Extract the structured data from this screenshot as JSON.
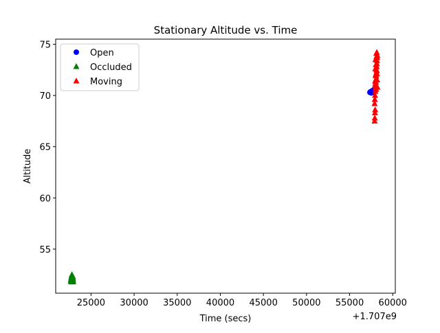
{
  "chart_data": {
    "type": "scatter",
    "title": "Stationary Altitude vs. Time",
    "xlabel": "Time (secs)",
    "ylabel": "Altitude",
    "x_offset_label": "+1.707e9",
    "x_offset": 1707000000,
    "xlim": [
      20900,
      60300
    ],
    "ylim": [
      50.7,
      75.5
    ],
    "x_ticks": [
      25000,
      30000,
      35000,
      40000,
      45000,
      50000,
      55000,
      60000
    ],
    "x_tick_labels": [
      "25000",
      "30000",
      "35000",
      "40000",
      "45000",
      "50000",
      "55000",
      "60000"
    ],
    "y_ticks": [
      55,
      60,
      65,
      70,
      75
    ],
    "y_tick_labels": [
      "55",
      "60",
      "65",
      "70",
      "75"
    ],
    "grid": false,
    "legend_position": "top-left",
    "series": [
      {
        "name": "Open",
        "marker": "circle",
        "color": "#0000ff",
        "points": [
          [
            57350,
            70.3
          ],
          [
            57400,
            70.35
          ],
          [
            57450,
            70.3
          ],
          [
            57500,
            70.4
          ],
          [
            57550,
            70.35
          ],
          [
            57600,
            70.4
          ],
          [
            57650,
            70.45
          ],
          [
            57700,
            70.5
          ],
          [
            57750,
            70.45
          ],
          [
            57800,
            70.55
          ],
          [
            57850,
            70.6
          ],
          [
            57900,
            70.6
          ],
          [
            57950,
            70.65
          ],
          [
            57500,
            70.25
          ],
          [
            57700,
            70.3
          ]
        ]
      },
      {
        "name": "Occluded",
        "marker": "triangle",
        "color": "#008000",
        "points": [
          [
            22650,
            51.9
          ],
          [
            22680,
            52.0
          ],
          [
            22700,
            52.1
          ],
          [
            22720,
            52.2
          ],
          [
            22740,
            52.3
          ],
          [
            22760,
            52.4
          ],
          [
            22780,
            52.5
          ],
          [
            22800,
            52.3
          ],
          [
            22820,
            52.2
          ],
          [
            22840,
            52.1
          ],
          [
            22860,
            52.0
          ],
          [
            22880,
            52.2
          ],
          [
            22900,
            52.3
          ],
          [
            22920,
            52.1
          ],
          [
            22940,
            51.9
          ],
          [
            22700,
            51.8
          ],
          [
            22800,
            51.85
          ],
          [
            22900,
            51.8
          ]
        ]
      },
      {
        "name": "Moving",
        "marker": "triangle",
        "color": "#ff0000",
        "points": [
          [
            57900,
            67.5
          ],
          [
            57920,
            67.8
          ],
          [
            57940,
            68.3
          ],
          [
            57960,
            68.6
          ],
          [
            57900,
            69.2
          ],
          [
            57920,
            69.6
          ],
          [
            57950,
            70.0
          ],
          [
            57980,
            70.4
          ],
          [
            58000,
            70.7
          ],
          [
            58020,
            71.0
          ],
          [
            58040,
            71.3
          ],
          [
            58060,
            71.6
          ],
          [
            58080,
            71.9
          ],
          [
            58100,
            72.2
          ],
          [
            58120,
            72.5
          ],
          [
            58140,
            72.8
          ],
          [
            58160,
            73.1
          ],
          [
            58180,
            73.4
          ],
          [
            58200,
            73.7
          ],
          [
            58220,
            73.9
          ],
          [
            58100,
            74.1
          ],
          [
            58150,
            74.2
          ],
          [
            58000,
            73.5
          ],
          [
            58050,
            73.0
          ],
          [
            57980,
            72.6
          ],
          [
            58010,
            72.0
          ],
          [
            57960,
            71.4
          ],
          [
            58030,
            70.9
          ],
          [
            58070,
            70.6
          ],
          [
            58180,
            72.1
          ],
          [
            58200,
            71.5
          ],
          [
            58230,
            70.8
          ],
          [
            58120,
            73.8
          ],
          [
            58160,
            72.4
          ],
          [
            57970,
            71.1
          ]
        ]
      }
    ]
  }
}
